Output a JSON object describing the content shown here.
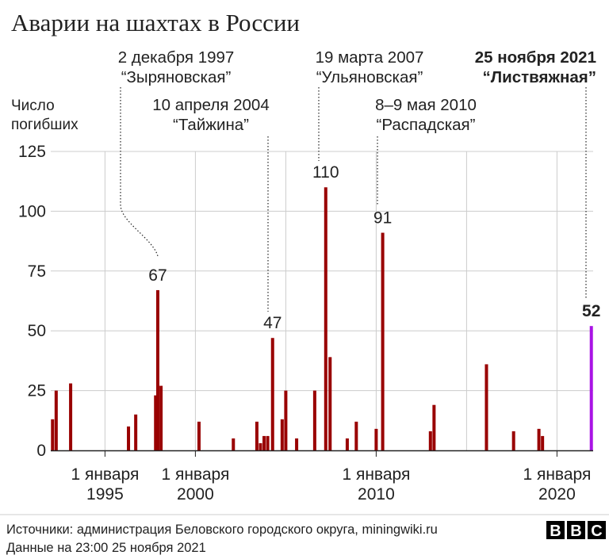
{
  "chart_data": {
    "type": "bar",
    "title": "Аварии на шахтах в России",
    "ylabel_lines": [
      "Число",
      "погибших"
    ],
    "ylim": [
      0,
      125
    ],
    "y_ticks": [
      0,
      25,
      50,
      75,
      100,
      125
    ],
    "x_range": [
      1992.0,
      2022.0
    ],
    "grid": "vertical gridlines at tick years",
    "x_ticks": [
      {
        "year": 1995,
        "line1": "1 января",
        "line2": "1995"
      },
      {
        "year": 2000,
        "line1": "1 января",
        "line2": "2000"
      },
      {
        "year": 2010,
        "line1": "1 января",
        "line2": "2010"
      },
      {
        "year": 2020,
        "line1": "1 января",
        "line2": "2020"
      }
    ],
    "extra_gridlines": [
      2005,
      2015
    ],
    "colors": {
      "bar": "#990000",
      "highlight": "#a913e5",
      "grid": "#cccccc",
      "axis": "#222222"
    },
    "series": [
      {
        "values": [
          {
            "date": 1992.1,
            "value": 13
          },
          {
            "date": 1992.3,
            "value": 25
          },
          {
            "date": 1993.1,
            "value": 28
          },
          {
            "date": 1996.3,
            "value": 10
          },
          {
            "date": 1996.7,
            "value": 15
          },
          {
            "date": 1997.8,
            "value": 23
          },
          {
            "date": 1997.92,
            "value": 67
          },
          {
            "date": 1998.1,
            "value": 27
          },
          {
            "date": 2000.2,
            "value": 12
          },
          {
            "date": 2002.1,
            "value": 5
          },
          {
            "date": 2003.4,
            "value": 12
          },
          {
            "date": 2003.6,
            "value": 3
          },
          {
            "date": 2003.8,
            "value": 6
          },
          {
            "date": 2004.0,
            "value": 6
          },
          {
            "date": 2004.27,
            "value": 47
          },
          {
            "date": 2004.8,
            "value": 13
          },
          {
            "date": 2005.0,
            "value": 25
          },
          {
            "date": 2005.6,
            "value": 5
          },
          {
            "date": 2006.6,
            "value": 25
          },
          {
            "date": 2007.21,
            "value": 110
          },
          {
            "date": 2007.45,
            "value": 39
          },
          {
            "date": 2008.4,
            "value": 5
          },
          {
            "date": 2008.9,
            "value": 12
          },
          {
            "date": 2010.0,
            "value": 9
          },
          {
            "date": 2010.36,
            "value": 91
          },
          {
            "date": 2013.0,
            "value": 8
          },
          {
            "date": 2013.2,
            "value": 19
          },
          {
            "date": 2016.1,
            "value": 36
          },
          {
            "date": 2017.6,
            "value": 8
          },
          {
            "date": 2019.0,
            "value": 9
          },
          {
            "date": 2019.2,
            "value": 6
          },
          {
            "date": 2021.9,
            "value": 52,
            "highlight": true
          }
        ]
      }
    ],
    "annotations": [
      {
        "date": 1997.92,
        "value": 67,
        "label": "67",
        "line1": "2 декабря 1997",
        "line2": "“Зыряновская”",
        "bold": false
      },
      {
        "date": 2004.27,
        "value": 47,
        "label": "47",
        "line1": "10 апреля 2004",
        "line2": "“Тайжина”",
        "bold": false
      },
      {
        "date": 2007.21,
        "value": 110,
        "label": "110",
        "line1": "19 марта 2007",
        "line2": "“Ульяновская”",
        "bold": false
      },
      {
        "date": 2010.36,
        "value": 91,
        "label": "91",
        "line1": "8–9 мая 2010",
        "line2": "“Распадская”",
        "bold": false
      },
      {
        "date": 2021.9,
        "value": 52,
        "label": "52",
        "line1": "25 ноября 2021",
        "line2": "“Листвяжная”",
        "bold": true
      }
    ]
  },
  "footer": {
    "source": "Источники: администрация Беловского городского округа, miningwiki.ru",
    "updated": "Данные на 23:00 25 ноября 2021",
    "logo_letters": [
      "B",
      "B",
      "C"
    ]
  }
}
